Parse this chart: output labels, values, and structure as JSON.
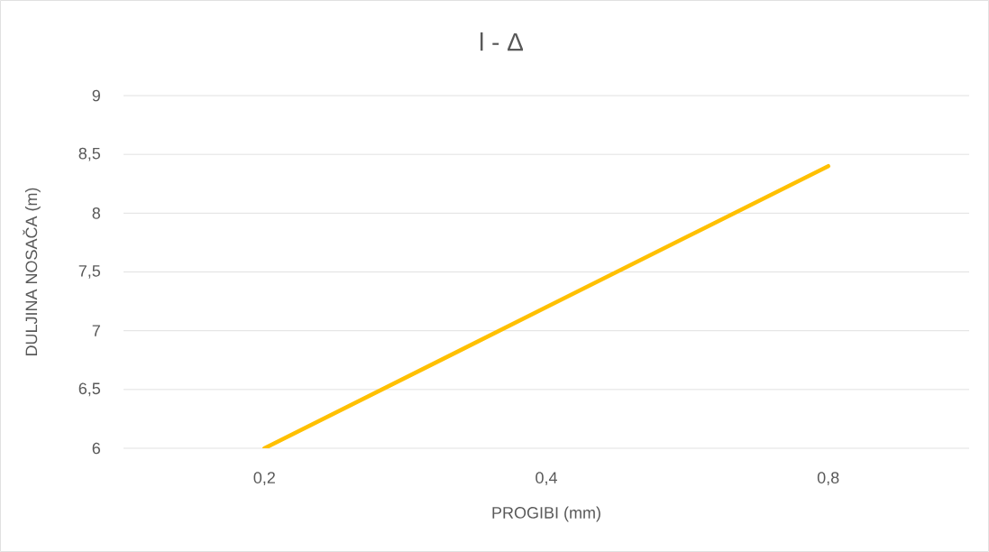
{
  "chart_data": {
    "type": "line",
    "title": "l - Δ",
    "xlabel": "PROGIBI (mm)",
    "ylabel": "DULJINA NOSAČA (m)",
    "categories": [
      "0,2",
      "0,4",
      "0,8"
    ],
    "series": [
      {
        "color": "#ffc000",
        "values": [
          6,
          7.2,
          8.4
        ]
      }
    ],
    "ylim": [
      6,
      9
    ],
    "yticks": [
      6,
      {
        "value": 6.5,
        "label": "6,5"
      },
      7,
      {
        "value": 7.5,
        "label": "7,5"
      },
      8,
      {
        "value": 8.5,
        "label": "8,5"
      },
      9
    ],
    "grid": "y"
  }
}
